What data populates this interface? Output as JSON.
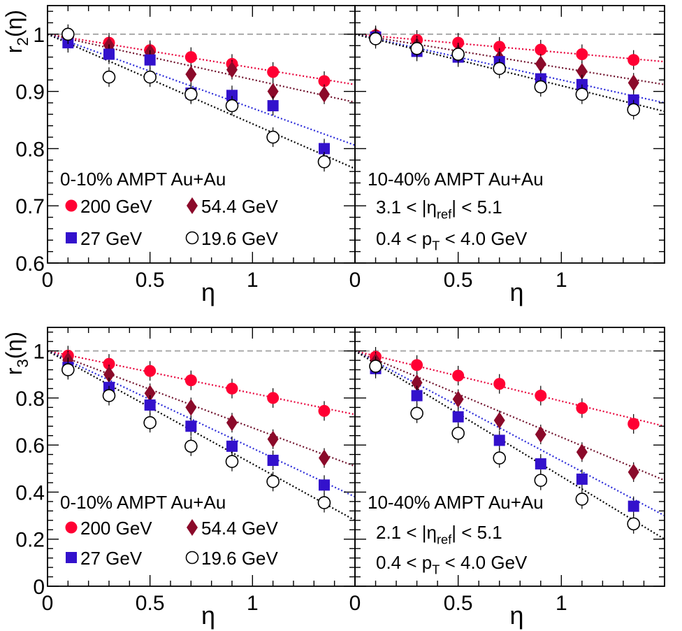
{
  "chart_data": [
    {
      "type": "scatter",
      "ylabel": "r",
      "ylabel_sub": "2",
      "ylabel_tail": "(η)",
      "xlabel": "η",
      "xlim": [
        0,
        1.5
      ],
      "ylim": [
        0.6,
        1.05
      ],
      "xticks": [
        0,
        0.5,
        1
      ],
      "xtick_labels": [
        "0",
        "0.5",
        "1"
      ],
      "yticks": [
        0.6,
        0.7,
        0.8,
        0.9,
        1
      ],
      "ytick_labels": [
        "0.6",
        "0.7",
        "0.8",
        "0.9",
        "1"
      ],
      "reference_line": 1,
      "annotations": [
        {
          "text": "0-10% AMPT Au+Au"
        }
      ],
      "legend": [
        {
          "series": "200 GeV",
          "label": "200 GeV"
        },
        {
          "series": "54.4 GeV",
          "label": "54.4 GeV"
        },
        {
          "series": "27 GeV",
          "label": "27 GeV"
        },
        {
          "series": "19.6 GeV",
          "label": "19.6 GeV"
        }
      ],
      "x": [
        0.1,
        0.3,
        0.5,
        0.7,
        0.9,
        1.1,
        1.35
      ],
      "series": [
        {
          "name": "200 GeV",
          "values": [
            0.995,
            0.985,
            0.972,
            0.96,
            0.948,
            0.934,
            0.918
          ],
          "fit_end": 0.912
        },
        {
          "name": "54.4 GeV",
          "values": [
            0.99,
            0.98,
            0.968,
            0.93,
            0.938,
            0.9,
            0.895
          ],
          "fit_end": 0.881
        },
        {
          "name": "27 GeV",
          "values": [
            0.985,
            0.965,
            0.955,
            0.897,
            0.893,
            0.875,
            0.8
          ],
          "fit_end": 0.806
        },
        {
          "name": "19.6 GeV",
          "values": [
            1.0,
            0.925,
            0.925,
            0.895,
            0.875,
            0.82,
            0.777
          ],
          "fit_end": 0.765
        }
      ]
    },
    {
      "type": "scatter",
      "xlabel": "η",
      "xlim": [
        0,
        1.5
      ],
      "ylim": [
        0.6,
        1.05
      ],
      "xticks": [
        0,
        0.5,
        1
      ],
      "xtick_labels": [
        "0",
        "0.5",
        "1"
      ],
      "yticks": [
        0.6,
        0.7,
        0.8,
        0.9,
        1
      ],
      "reference_line": 1,
      "annotations": [
        {
          "text": "10-40% AMPT Au+Au"
        },
        {
          "parts": [
            "3.1 < |η",
            "ref",
            "| < 5.1"
          ]
        },
        {
          "parts": [
            "0.4 < p",
            "T",
            " < 4.0 GeV"
          ]
        }
      ],
      "x": [
        0.1,
        0.3,
        0.5,
        0.7,
        0.9,
        1.1,
        1.35
      ],
      "series": [
        {
          "name": "200 GeV",
          "values": [
            0.998,
            0.99,
            0.985,
            0.978,
            0.973,
            0.965,
            0.955
          ],
          "fit_end": 0.952
        },
        {
          "name": "54.4 GeV",
          "values": [
            0.997,
            0.98,
            0.968,
            0.958,
            0.948,
            0.935,
            0.915
          ],
          "fit_end": 0.912
        },
        {
          "name": "27 GeV",
          "values": [
            0.995,
            0.97,
            0.96,
            0.952,
            0.922,
            0.912,
            0.885
          ],
          "fit_end": 0.88
        },
        {
          "name": "19.6 GeV",
          "values": [
            0.992,
            0.975,
            0.965,
            0.94,
            0.908,
            0.895,
            0.868
          ],
          "fit_end": 0.865
        }
      ]
    },
    {
      "type": "scatter",
      "ylabel": "r",
      "ylabel_sub": "3",
      "ylabel_tail": "(η)",
      "xlabel": "η",
      "xlim": [
        0,
        1.5
      ],
      "ylim": [
        0,
        1.1
      ],
      "xticks": [
        0,
        0.5,
        1
      ],
      "xtick_labels": [
        "0",
        "0.5",
        "1"
      ],
      "yticks": [
        0,
        0.2,
        0.4,
        0.6,
        0.8,
        1
      ],
      "ytick_labels": [
        "0",
        "0.2",
        "0.4",
        "0.6",
        "0.8",
        "1"
      ],
      "reference_line": 1,
      "annotations": [
        {
          "text": "0-10% AMPT Au+Au"
        }
      ],
      "legend": [
        {
          "series": "200 GeV",
          "label": "200 GeV"
        },
        {
          "series": "54.4 GeV",
          "label": "54.4 GeV"
        },
        {
          "series": "27 GeV",
          "label": "27 GeV"
        },
        {
          "series": "19.6 GeV",
          "label": "19.6 GeV"
        }
      ],
      "x": [
        0.1,
        0.3,
        0.5,
        0.7,
        0.9,
        1.1,
        1.35
      ],
      "series": [
        {
          "name": "200 GeV",
          "values": [
            0.98,
            0.945,
            0.915,
            0.875,
            0.84,
            0.8,
            0.745
          ],
          "fit_end": 0.73
        },
        {
          "name": "54.4 GeV",
          "values": [
            0.96,
            0.9,
            0.82,
            0.76,
            0.695,
            0.625,
            0.545
          ],
          "fit_end": 0.51
        },
        {
          "name": "27 GeV",
          "values": [
            0.93,
            0.845,
            0.77,
            0.68,
            0.595,
            0.535,
            0.43
          ],
          "fit_end": 0.38
        },
        {
          "name": "19.6 GeV",
          "values": [
            0.92,
            0.81,
            0.695,
            0.595,
            0.53,
            0.445,
            0.355
          ],
          "fit_end": 0.28
        }
      ]
    },
    {
      "type": "scatter",
      "xlabel": "η",
      "xlim": [
        0,
        1.5
      ],
      "ylim": [
        0,
        1.1
      ],
      "xticks": [
        0,
        0.5,
        1
      ],
      "xtick_labels": [
        "0",
        "0.5",
        "1"
      ],
      "yticks": [
        0,
        0.2,
        0.4,
        0.6,
        0.8,
        1
      ],
      "reference_line": 1,
      "annotations": [
        {
          "text": "10-40% AMPT Au+Au"
        },
        {
          "parts": [
            "2.1 < |η",
            "ref",
            "| < 5.1"
          ]
        },
        {
          "parts": [
            "0.4 < p",
            "T",
            " < 4.0 GeV"
          ]
        }
      ],
      "x": [
        0.1,
        0.3,
        0.5,
        0.7,
        0.9,
        1.1,
        1.35
      ],
      "series": [
        {
          "name": "200 GeV",
          "values": [
            0.975,
            0.94,
            0.895,
            0.86,
            0.81,
            0.757,
            0.69
          ],
          "fit_end": 0.68
        },
        {
          "name": "54.4 GeV",
          "values": [
            0.955,
            0.865,
            0.795,
            0.705,
            0.645,
            0.57,
            0.485
          ],
          "fit_end": 0.45
        },
        {
          "name": "27 GeV",
          "values": [
            0.925,
            0.81,
            0.72,
            0.62,
            0.52,
            0.455,
            0.34
          ],
          "fit_end": 0.3
        },
        {
          "name": "19.6 GeV",
          "values": [
            0.935,
            0.735,
            0.65,
            0.545,
            0.45,
            0.37,
            0.265
          ],
          "fit_end": 0.2
        }
      ]
    }
  ],
  "styles": {
    "200 GeV": {
      "marker": "circle",
      "color": "#ff0033",
      "fit_color": "#e8003a"
    },
    "54.4 GeV": {
      "marker": "diamond",
      "color": "#8b0a2a",
      "fit_color": "#6e0f2a"
    },
    "27 GeV": {
      "marker": "square",
      "color": "#3311cc",
      "fit_color": "#2b2bd9"
    },
    "19.6 GeV": {
      "marker": "open-circle",
      "color": "#000000",
      "fit_color": "#000000"
    },
    "reference": {
      "color": "#aaaaaa"
    }
  }
}
